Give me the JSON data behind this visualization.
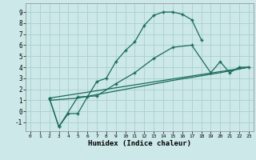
{
  "xlabel": "Humidex (Indice chaleur)",
  "background_color": "#cce8e8",
  "grid_color": "#aacfcf",
  "line_color": "#1a6b5a",
  "xlim": [
    -0.5,
    23.5
  ],
  "ylim": [
    -1.8,
    9.8
  ],
  "xticks": [
    0,
    1,
    2,
    3,
    4,
    5,
    6,
    7,
    8,
    9,
    10,
    11,
    12,
    13,
    14,
    15,
    16,
    17,
    18,
    19,
    20,
    21,
    22,
    23
  ],
  "yticks": [
    -1,
    0,
    1,
    2,
    3,
    4,
    5,
    6,
    7,
    8,
    9
  ],
  "line1_x": [
    2,
    3,
    4,
    5,
    6,
    7,
    8,
    9,
    10,
    11,
    12,
    13,
    14,
    15,
    16,
    17,
    18
  ],
  "line1_y": [
    1.2,
    -1.4,
    -0.2,
    -0.2,
    1.3,
    2.7,
    3.0,
    4.5,
    5.5,
    6.3,
    7.8,
    8.7,
    9.0,
    9.0,
    8.8,
    8.3,
    6.5
  ],
  "line2_x": [
    2,
    3,
    5,
    7,
    9,
    11,
    13,
    15,
    17,
    19,
    20,
    21,
    22,
    23
  ],
  "line2_y": [
    1.2,
    -1.4,
    1.3,
    1.4,
    2.5,
    3.5,
    4.8,
    5.8,
    6.0,
    3.5,
    4.5,
    3.5,
    4.0,
    4.0
  ],
  "line3_x": [
    2,
    23
  ],
  "line3_y": [
    1.2,
    4.0
  ],
  "line4_x": [
    2,
    5,
    10,
    15,
    20,
    23
  ],
  "line4_y": [
    1.0,
    1.2,
    2.0,
    2.8,
    3.5,
    4.0
  ]
}
